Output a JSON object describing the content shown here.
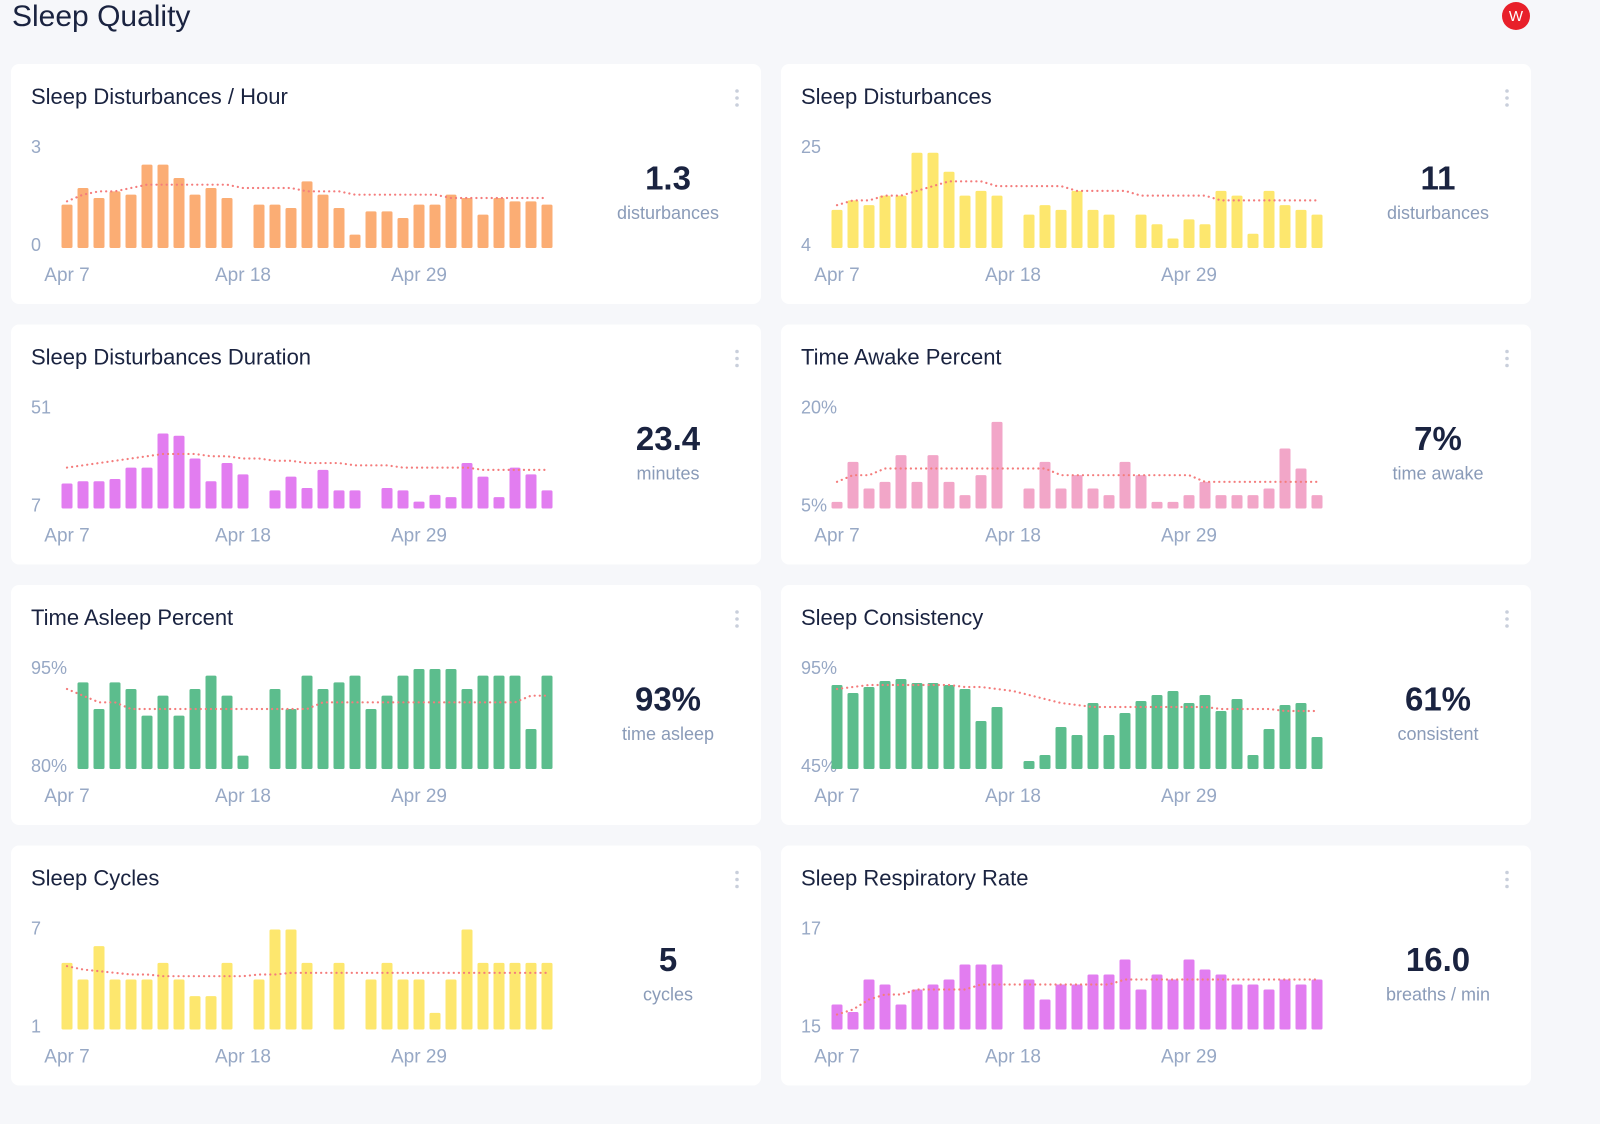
{
  "header": {
    "title": "Sleep Quality"
  },
  "chart_data": [
    {
      "type": "bar",
      "title": "Sleep Disturbances / Hour",
      "summary": 1.3,
      "unit": "disturbances",
      "categories": [
        "Apr 7",
        null,
        null,
        null,
        null,
        null,
        null,
        null,
        null,
        null,
        null,
        "Apr 18",
        null,
        null,
        null,
        null,
        null,
        null,
        null,
        null,
        null,
        null,
        "Apr 29",
        null,
        null,
        null,
        null,
        null,
        null,
        null,
        null
      ],
      "ylim": [
        0,
        3
      ],
      "yticks": [
        0,
        3
      ],
      "series": [
        {
          "color": "#fbad74",
          "values": [
            1.3,
            1.8,
            1.5,
            1.7,
            1.6,
            2.5,
            2.5,
            2.1,
            1.6,
            1.8,
            1.5,
            null,
            1.3,
            1.3,
            1.2,
            2.0,
            1.6,
            1.2,
            0.4,
            1.1,
            1.1,
            0.9,
            1.3,
            1.3,
            1.6,
            1.5,
            1.0,
            1.5,
            1.4,
            1.4,
            1.3
          ]
        },
        {
          "type": "line",
          "color": "#f47c7c",
          "values": [
            1.4,
            1.6,
            1.7,
            1.7,
            1.8,
            1.9,
            1.9,
            1.9,
            1.9,
            1.9,
            1.9,
            1.8,
            1.8,
            1.8,
            1.8,
            1.7,
            1.7,
            1.7,
            1.6,
            1.6,
            1.6,
            1.6,
            1.6,
            1.6,
            1.5,
            1.5,
            1.5,
            1.5,
            1.5,
            1.5,
            1.5
          ]
        }
      ]
    },
    {
      "type": "bar",
      "title": "Sleep Disturbances",
      "summary": 11,
      "unit": "disturbances",
      "categories": [
        "Apr 7",
        null,
        null,
        null,
        null,
        null,
        null,
        null,
        null,
        null,
        null,
        "Apr 18",
        null,
        null,
        null,
        null,
        null,
        null,
        null,
        null,
        null,
        null,
        "Apr 29",
        null,
        null,
        null,
        null,
        null,
        null,
        null,
        null
      ],
      "ylim": [
        4,
        25
      ],
      "yticks": [
        4,
        25
      ],
      "series": [
        {
          "color": "#fde76e",
          "values": [
            12,
            14,
            13,
            15,
            15,
            24,
            24,
            20,
            15,
            16,
            15,
            null,
            11,
            13,
            12,
            16,
            12,
            11,
            null,
            11,
            9,
            6,
            10,
            9,
            16,
            15,
            7,
            16,
            13,
            12,
            11
          ]
        },
        {
          "type": "line",
          "color": "#f47c7c",
          "values": [
            13,
            14,
            14,
            15,
            15,
            16,
            17,
            18,
            18,
            18,
            17,
            17,
            17,
            17,
            17,
            16,
            16,
            16,
            16,
            15,
            15,
            15,
            15,
            15,
            14,
            14,
            14,
            14,
            14,
            14,
            14
          ]
        }
      ]
    },
    {
      "type": "bar",
      "title": "Sleep Disturbances Duration",
      "summary": 23.4,
      "unit": "minutes",
      "categories": [
        "Apr 7",
        null,
        null,
        null,
        null,
        null,
        null,
        null,
        null,
        null,
        null,
        "Apr 18",
        null,
        null,
        null,
        null,
        null,
        null,
        null,
        null,
        null,
        null,
        "Apr 29",
        null,
        null,
        null,
        null,
        null,
        null,
        null,
        null
      ],
      "ylim": [
        7,
        51
      ],
      "yticks": [
        7,
        51
      ],
      "series": [
        {
          "color": "#e27df0",
          "values": [
            18,
            19,
            19,
            20,
            25,
            25,
            40,
            39,
            29,
            19,
            27,
            22,
            null,
            15,
            21,
            16,
            24,
            15,
            15,
            null,
            16,
            15,
            10,
            13,
            12,
            27,
            21,
            12,
            25,
            22,
            15
          ]
        },
        {
          "type": "line",
          "color": "#f47c7c",
          "values": [
            25,
            26,
            27,
            28,
            29,
            30,
            31,
            31,
            31,
            30,
            30,
            29,
            29,
            28,
            28,
            27,
            27,
            27,
            26,
            26,
            26,
            25,
            25,
            25,
            25,
            25,
            24,
            24,
            24,
            24,
            24
          ]
        }
      ]
    },
    {
      "type": "bar",
      "title": "Time Awake Percent",
      "summary": {
        "value": 7,
        "label": "7%"
      },
      "unit": "time awake",
      "categories": [
        "Apr 7",
        null,
        null,
        null,
        null,
        null,
        null,
        null,
        null,
        null,
        null,
        "Apr 18",
        null,
        null,
        null,
        null,
        null,
        null,
        null,
        null,
        null,
        null,
        "Apr 29",
        null,
        null,
        null,
        null,
        null,
        null,
        null,
        null
      ],
      "ylim": [
        5,
        20
      ],
      "yticks": [
        {
          "value": 5,
          "label": "5%"
        },
        {
          "value": 20,
          "label": "20%"
        }
      ],
      "series": [
        {
          "color": "#f2a6c8",
          "values": [
            6,
            12,
            8,
            9,
            13,
            9,
            13,
            9,
            7,
            10,
            18,
            null,
            8,
            12,
            8,
            10,
            8,
            7,
            12,
            10,
            6,
            6,
            7,
            9,
            7,
            7,
            7,
            8,
            14,
            11,
            7
          ]
        },
        {
          "type": "line",
          "color": "#f47c7c",
          "values": [
            9,
            10,
            10,
            11,
            11,
            11,
            11,
            11,
            11,
            11,
            11,
            11,
            11,
            11,
            10,
            10,
            10,
            10,
            10,
            10,
            10,
            10,
            10,
            9,
            9,
            9,
            9,
            9,
            9,
            9,
            9
          ]
        }
      ]
    },
    {
      "type": "bar",
      "title": "Time Asleep Percent",
      "summary": {
        "value": 93,
        "label": "93%"
      },
      "unit": "time asleep",
      "categories": [
        "Apr 7",
        null,
        null,
        null,
        null,
        null,
        null,
        null,
        null,
        null,
        null,
        "Apr 18",
        null,
        null,
        null,
        null,
        null,
        null,
        null,
        null,
        null,
        null,
        "Apr 29",
        null,
        null,
        null,
        null,
        null,
        null,
        null,
        null
      ],
      "ylim": [
        80,
        95
      ],
      "yticks": [
        {
          "value": 80,
          "label": "80%"
        },
        {
          "value": 95,
          "label": "95%"
        }
      ],
      "series": [
        {
          "color": "#5cbd8d",
          "values": [
            null,
            93,
            89,
            93,
            92,
            88,
            91,
            88,
            92,
            94,
            91,
            82,
            null,
            92,
            89,
            94,
            92,
            93,
            94,
            89,
            91,
            94,
            95,
            95,
            95,
            92,
            94,
            94,
            94,
            86,
            94
          ]
        },
        {
          "type": "line",
          "color": "#f47c7c",
          "values": [
            92,
            91,
            90,
            90,
            89,
            89,
            89,
            89,
            89,
            89,
            89,
            89,
            89,
            89,
            89,
            89,
            90,
            90,
            90,
            90,
            90,
            90,
            90,
            90,
            90,
            90,
            90,
            90,
            90,
            91,
            91
          ]
        }
      ]
    },
    {
      "type": "bar",
      "title": "Sleep Consistency",
      "summary": {
        "value": 61,
        "label": "61%"
      },
      "unit": "consistent",
      "categories": [
        "Apr 7",
        null,
        null,
        null,
        null,
        null,
        null,
        null,
        null,
        null,
        null,
        "Apr 18",
        null,
        null,
        null,
        null,
        null,
        null,
        null,
        null,
        null,
        null,
        "Apr 29",
        null,
        null,
        null,
        null,
        null,
        null,
        null,
        null
      ],
      "ylim": [
        45,
        95
      ],
      "yticks": [
        {
          "value": 45,
          "label": "45%"
        },
        {
          "value": 95,
          "label": "95%"
        }
      ],
      "series": [
        {
          "color": "#5cbd8d",
          "values": [
            87,
            83,
            86,
            89,
            90,
            88,
            88,
            87,
            85,
            69,
            76,
            null,
            49,
            52,
            66,
            62,
            78,
            62,
            73,
            79,
            82,
            84,
            78,
            82,
            74,
            80,
            52,
            65,
            77,
            78,
            61
          ]
        },
        {
          "type": "line",
          "color": "#f47c7c",
          "values": [
            85,
            86,
            87,
            87,
            87,
            87,
            87,
            87,
            86,
            86,
            85,
            84,
            82,
            80,
            78,
            77,
            76,
            76,
            76,
            76,
            76,
            76,
            76,
            76,
            75,
            75,
            75,
            75,
            74,
            74,
            74
          ]
        }
      ]
    },
    {
      "type": "bar",
      "title": "Sleep Cycles",
      "summary": 5,
      "unit": "cycles",
      "categories": [
        "Apr 7",
        null,
        null,
        null,
        null,
        null,
        null,
        null,
        null,
        null,
        null,
        "Apr 18",
        null,
        null,
        null,
        null,
        null,
        null,
        null,
        null,
        null,
        null,
        "Apr 29",
        null,
        null,
        null,
        null,
        null,
        null,
        null,
        null
      ],
      "ylim": [
        1,
        7
      ],
      "yticks": [
        1,
        7
      ],
      "series": [
        {
          "color": "#fde76e",
          "values": [
            5,
            4,
            6,
            4,
            4,
            4,
            5,
            4,
            3,
            3,
            5,
            null,
            4,
            7,
            7,
            5,
            null,
            5,
            null,
            4,
            5,
            4,
            4,
            2,
            4,
            7,
            5,
            5,
            5,
            5,
            5
          ]
        },
        {
          "type": "line",
          "color": "#f47c7c",
          "values": [
            4.8,
            4.6,
            4.5,
            4.4,
            4.3,
            4.3,
            4.2,
            4.2,
            4.2,
            4.2,
            4.2,
            4.2,
            4.3,
            4.3,
            4.4,
            4.4,
            4.4,
            4.4,
            4.4,
            4.4,
            4.4,
            4.4,
            4.4,
            4.4,
            4.4,
            4.4,
            4.4,
            4.4,
            4.4,
            4.4,
            4.4
          ]
        }
      ]
    },
    {
      "type": "bar",
      "title": "Sleep Respiratory Rate",
      "summary": {
        "value": 16,
        "label": "16.0"
      },
      "unit": "breaths / min",
      "categories": [
        "Apr 7",
        null,
        null,
        null,
        null,
        null,
        null,
        null,
        null,
        null,
        null,
        "Apr 18",
        null,
        null,
        null,
        null,
        null,
        null,
        null,
        null,
        null,
        null,
        "Apr 29",
        null,
        null,
        null,
        null,
        null,
        null,
        null,
        null
      ],
      "ylim": [
        15,
        17
      ],
      "yticks": [
        15,
        17
      ],
      "series": [
        {
          "color": "#e27df0",
          "values": [
            15.5,
            15.35,
            16.0,
            15.9,
            15.5,
            15.8,
            15.9,
            16.0,
            16.3,
            16.3,
            16.3,
            null,
            16.0,
            15.6,
            15.9,
            15.9,
            16.1,
            16.1,
            16.4,
            15.8,
            16.1,
            16.0,
            16.4,
            16.2,
            16.1,
            15.9,
            15.9,
            15.8,
            16.0,
            15.9,
            16.0
          ]
        },
        {
          "type": "line",
          "color": "#f47c7c",
          "values": [
            15.3,
            15.4,
            15.6,
            15.7,
            15.7,
            15.8,
            15.8,
            15.8,
            15.8,
            15.9,
            15.9,
            15.9,
            15.9,
            15.9,
            15.9,
            15.9,
            15.9,
            15.9,
            16.0,
            16.0,
            16.0,
            16.0,
            16.0,
            16.0,
            16.0,
            16.0,
            16.0,
            16.0,
            16.0,
            16.0,
            16.0
          ]
        }
      ]
    }
  ]
}
